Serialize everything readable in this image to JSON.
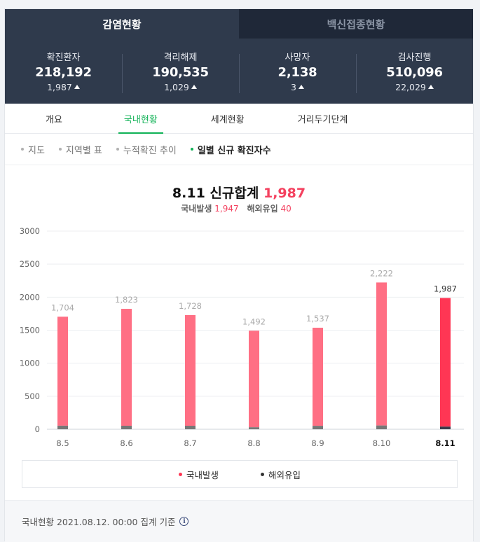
{
  "top_tabs": [
    {
      "label": "감염현황",
      "active": true
    },
    {
      "label": "백신접종현황",
      "active": false
    }
  ],
  "stats": [
    {
      "label": "확진환자",
      "value": "218,192",
      "delta": "1,987"
    },
    {
      "label": "격리해제",
      "value": "190,535",
      "delta": "1,029"
    },
    {
      "label": "사망자",
      "value": "2,138",
      "delta": "3"
    },
    {
      "label": "검사진행",
      "value": "510,096",
      "delta": "22,029"
    }
  ],
  "sub_tabs": [
    {
      "label": "개요",
      "active": false
    },
    {
      "label": "국내현황",
      "active": true
    },
    {
      "label": "세계현황",
      "active": false
    },
    {
      "label": "거리두기단계",
      "active": false
    }
  ],
  "filters": [
    {
      "label": "지도",
      "active": false
    },
    {
      "label": "지역별 표",
      "active": false
    },
    {
      "label": "누적확진 추이",
      "active": false
    },
    {
      "label": "일별 신규 확진자수",
      "active": true
    }
  ],
  "summary": {
    "title_prefix": "8.11 신규합계",
    "total": "1,987",
    "domestic_label": "국내발생",
    "domestic_value": "1,947",
    "imported_label": "해외유입",
    "imported_value": "40"
  },
  "chart_data": {
    "type": "bar",
    "categories": [
      "8.5",
      "8.6",
      "8.7",
      "8.8",
      "8.9",
      "8.10",
      "8.11"
    ],
    "totals": [
      1704,
      1823,
      1728,
      1492,
      1537,
      2222,
      1987
    ],
    "total_labels": [
      "1,704",
      "1,823",
      "1,728",
      "1,492",
      "1,537",
      "2,222",
      "1,987"
    ],
    "series": [
      {
        "name": "국내발생",
        "values": [
          1650,
          1770,
          1675,
          1462,
          1485,
          2165,
          1947
        ],
        "color": "#ff6f84",
        "highlight_color": "#ff3654"
      },
      {
        "name": "해외유입",
        "values": [
          54,
          53,
          53,
          30,
          52,
          57,
          40
        ],
        "color": "#777777",
        "highlight_color": "#3a3a4a"
      }
    ],
    "ylim": [
      0,
      3000
    ],
    "yticks": [
      0,
      500,
      1000,
      1500,
      2000,
      2500,
      3000
    ],
    "grid": true,
    "stacked": true,
    "legend": "bottom"
  },
  "legend": [
    {
      "label": "국내발생",
      "color": "#ff3654"
    },
    {
      "label": "해외유입",
      "color": "#333333"
    }
  ],
  "footer": {
    "text": "국내현황 2021.08.12. 00:00 집계 기준"
  }
}
